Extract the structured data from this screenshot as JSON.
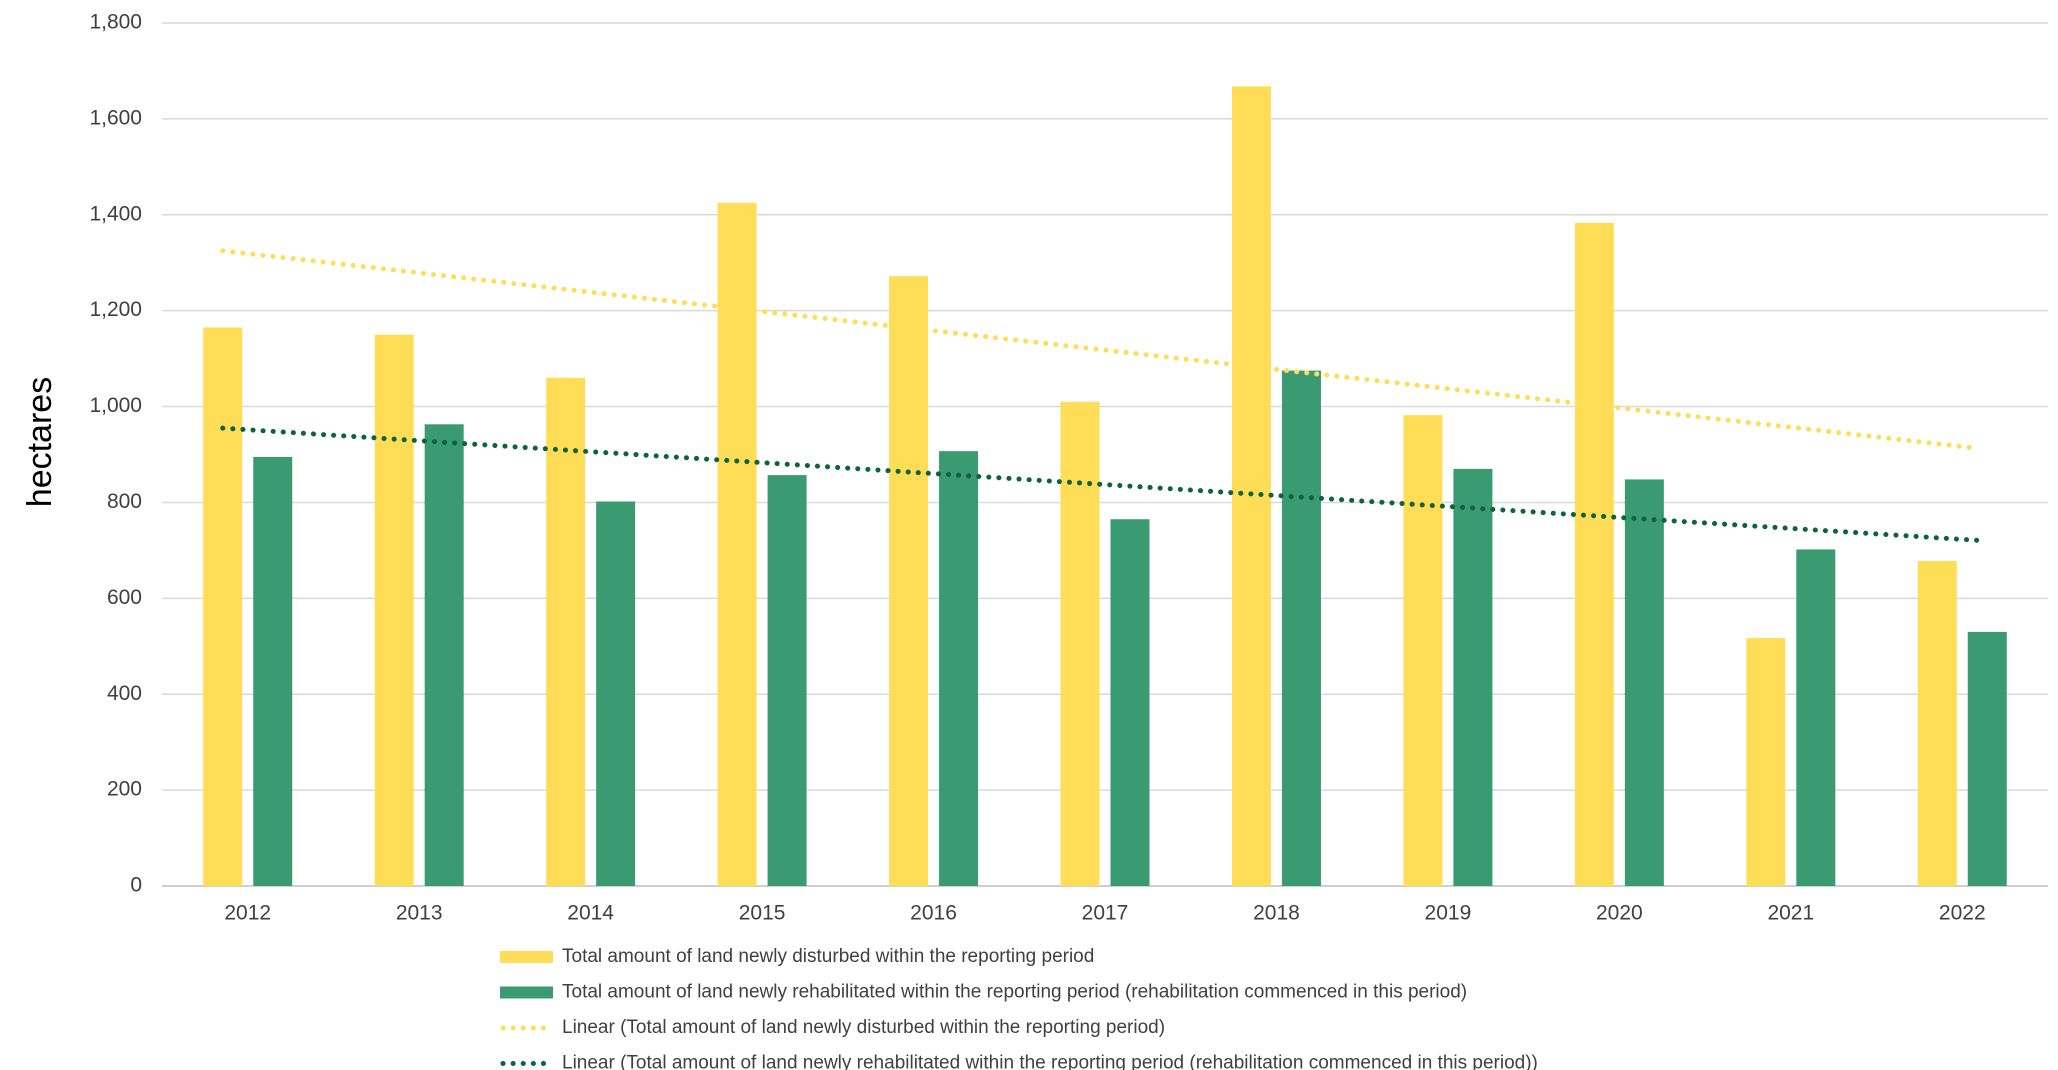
{
  "chart_data": {
    "type": "bar",
    "title": "",
    "xlabel": "",
    "ylabel": "hectares",
    "ylim": [
      0,
      1800
    ],
    "y_ticks": [
      "0",
      "200",
      "400",
      "600",
      "800",
      "1,000",
      "1,200",
      "1,400",
      "1,600",
      "1,800"
    ],
    "y_tick_values": [
      0,
      200,
      400,
      600,
      800,
      1000,
      1200,
      1400,
      1600,
      1800
    ],
    "grid": true,
    "legend_position": "bottom",
    "categories": [
      "2012",
      "2013",
      "2014",
      "2015",
      "2016",
      "2017",
      "2018",
      "2019",
      "2020",
      "2021",
      "2022"
    ],
    "series": [
      {
        "name": "Total amount of land newly disturbed within the reporting period",
        "color": "#FFDD57",
        "values": [
          1165,
          1150,
          1060,
          1425,
          1272,
          1010,
          1668,
          982,
          1383,
          517,
          678
        ]
      },
      {
        "name": "Total amount of land newly rehabilitated within the reporting period (rehabilitation commenced in this period)",
        "color": "#3A9B73",
        "values": [
          895,
          963,
          802,
          857,
          907,
          765,
          1075,
          870,
          848,
          702,
          530
        ]
      }
    ],
    "trendlines": [
      {
        "name": "Linear (Total amount of land newly disturbed within the reporting period)",
        "color": "#FFDD57",
        "style": "dotted",
        "start_value": 1325,
        "end_value": 913
      },
      {
        "name": "Linear (Total amount of land newly rehabilitated within the reporting period (rehabilitation commenced in this period))",
        "color": "#0E6338",
        "style": "dotted",
        "start_value": 955,
        "end_value": 721
      }
    ]
  }
}
